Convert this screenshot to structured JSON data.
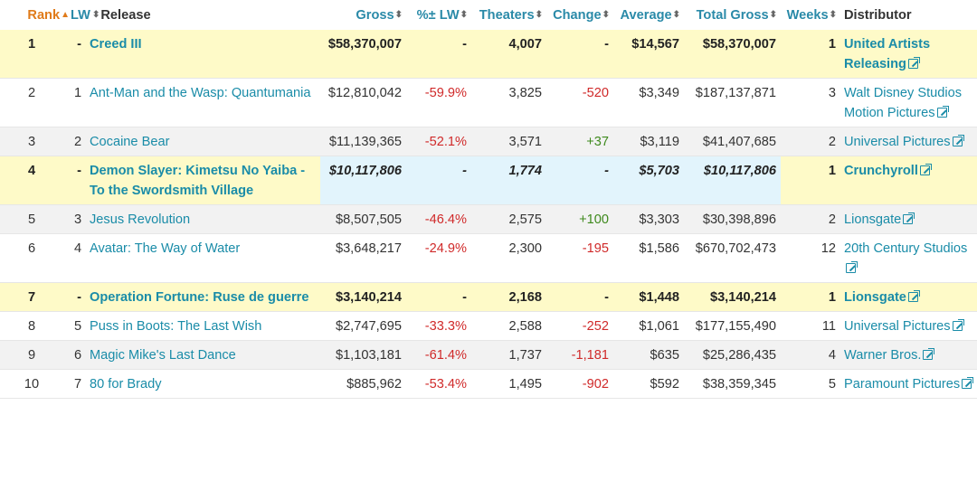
{
  "headers": {
    "rank": "Rank",
    "lw": "LW",
    "release": "Release",
    "gross": "Gross",
    "pct_lw": "%± LW",
    "theaters": "Theaters",
    "change": "Change",
    "average": "Average",
    "total_gross": "Total Gross",
    "weeks": "Weeks",
    "distributor": "Distributor"
  },
  "colors": {
    "link": "#1a8ca8",
    "sorted_header": "#e07b1a",
    "negative": "#d02a2a",
    "positive": "#3f8a1e",
    "new_release_bg": "#fefac8",
    "highlight_bg": "#e2f4fc"
  },
  "rows": [
    {
      "rank": "1",
      "lw": "-",
      "release": "Creed III",
      "gross": "$58,370,007",
      "pct_lw": "-",
      "theaters": "4,007",
      "change": "-",
      "average": "$14,567",
      "total_gross": "$58,370,007",
      "weeks": "1",
      "distributor": "United Artists Releasing",
      "style": "new"
    },
    {
      "rank": "2",
      "lw": "1",
      "release": "Ant-Man and the Wasp: Quantumania",
      "gross": "$12,810,042",
      "pct_lw": "-59.9%",
      "theaters": "3,825",
      "change": "-520",
      "average": "$3,349",
      "total_gross": "$187,137,871",
      "weeks": "3",
      "distributor": "Walt Disney Studios Motion Pictures",
      "style": "normal"
    },
    {
      "rank": "3",
      "lw": "2",
      "release": "Cocaine Bear",
      "gross": "$11,139,365",
      "pct_lw": "-52.1%",
      "theaters": "3,571",
      "change": "+37",
      "average": "$3,119",
      "total_gross": "$41,407,685",
      "weeks": "2",
      "distributor": "Universal Pictures",
      "style": "alt"
    },
    {
      "rank": "4",
      "lw": "-",
      "release": "Demon Slayer: Kimetsu No Yaiba - To the Swordsmith Village",
      "gross": "$10,117,806",
      "pct_lw": "-",
      "theaters": "1,774",
      "change": "-",
      "average": "$5,703",
      "total_gross": "$10,117,806",
      "weeks": "1",
      "distributor": "Crunchyroll",
      "style": "special"
    },
    {
      "rank": "5",
      "lw": "3",
      "release": "Jesus Revolution",
      "gross": "$8,507,505",
      "pct_lw": "-46.4%",
      "theaters": "2,575",
      "change": "+100",
      "average": "$3,303",
      "total_gross": "$30,398,896",
      "weeks": "2",
      "distributor": "Lionsgate",
      "style": "alt"
    },
    {
      "rank": "6",
      "lw": "4",
      "release": "Avatar: The Way of Water",
      "gross": "$3,648,217",
      "pct_lw": "-24.9%",
      "theaters": "2,300",
      "change": "-195",
      "average": "$1,586",
      "total_gross": "$670,702,473",
      "weeks": "12",
      "distributor": "20th Century Studios",
      "style": "normal"
    },
    {
      "rank": "7",
      "lw": "-",
      "release": "Operation Fortune: Ruse de guerre",
      "gross": "$3,140,214",
      "pct_lw": "-",
      "theaters": "2,168",
      "change": "-",
      "average": "$1,448",
      "total_gross": "$3,140,214",
      "weeks": "1",
      "distributor": "Lionsgate",
      "style": "new"
    },
    {
      "rank": "8",
      "lw": "5",
      "release": "Puss in Boots: The Last Wish",
      "gross": "$2,747,695",
      "pct_lw": "-33.3%",
      "theaters": "2,588",
      "change": "-252",
      "average": "$1,061",
      "total_gross": "$177,155,490",
      "weeks": "11",
      "distributor": "Universal Pictures",
      "style": "normal"
    },
    {
      "rank": "9",
      "lw": "6",
      "release": "Magic Mike's Last Dance",
      "gross": "$1,103,181",
      "pct_lw": "-61.4%",
      "theaters": "1,737",
      "change": "-1,181",
      "average": "$635",
      "total_gross": "$25,286,435",
      "weeks": "4",
      "distributor": "Warner Bros.",
      "style": "alt"
    },
    {
      "rank": "10",
      "lw": "7",
      "release": "80 for Brady",
      "gross": "$885,962",
      "pct_lw": "-53.4%",
      "theaters": "1,495",
      "change": "-902",
      "average": "$592",
      "total_gross": "$38,359,345",
      "weeks": "5",
      "distributor": "Paramount Pictures",
      "style": "normal"
    }
  ]
}
